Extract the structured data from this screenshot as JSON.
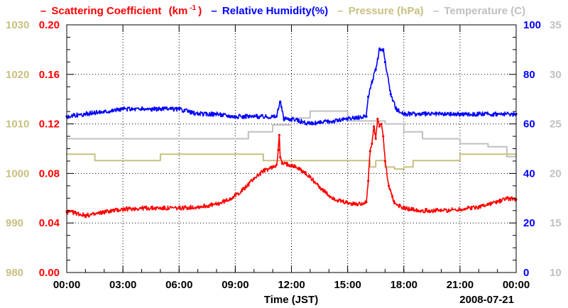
{
  "chart_data": {
    "type": "line",
    "legend": [
      {
        "name": "Scattering Coefficient",
        "unit_pre": "(km",
        "unit_sup": "-1",
        "unit_post": ")",
        "color": "#ff0000"
      },
      {
        "name": "Relative Humidity(%)",
        "color": "#0000ff"
      },
      {
        "name": "Pressure (hPa)",
        "color": "#c8c080"
      },
      {
        "name": "Temperature (C)",
        "color": "#c0c0c0"
      }
    ],
    "xlabel": "Time (JST)",
    "date_label": "2008-07-21",
    "x_range_hours": [
      0,
      24
    ],
    "x_ticks": [
      "00:00",
      "03:00",
      "06:00",
      "09:00",
      "12:00",
      "15:00",
      "18:00",
      "21:00",
      "00:00"
    ],
    "axes": {
      "scattering": {
        "range": [
          0.0,
          0.2
        ],
        "ticks": [
          "0.00",
          "0.04",
          "0.08",
          "0.12",
          "0.16",
          "0.20"
        ],
        "color": "#ff0000"
      },
      "pressure": {
        "range": [
          980,
          1030
        ],
        "ticks": [
          "980",
          "990",
          "1000",
          "1010",
          "1020",
          "1030"
        ],
        "color": "#c8c080"
      },
      "humidity": {
        "range": [
          0,
          100
        ],
        "ticks": [
          "0",
          "20",
          "40",
          "60",
          "80",
          "100"
        ],
        "color": "#0000ff"
      },
      "temperature": {
        "range": [
          10,
          35
        ],
        "ticks": [
          "10",
          "15",
          "20",
          "25",
          "30",
          "35"
        ],
        "color": "#c0c0c0"
      }
    },
    "series": [
      {
        "name": "Scattering Coefficient",
        "axis": "scattering",
        "x": [
          0,
          0.5,
          1,
          1.5,
          2,
          3,
          4,
          5,
          6,
          7,
          8,
          8.5,
          9,
          9.5,
          10,
          10.5,
          11,
          11.2,
          11.3,
          11.35,
          11.4,
          11.5,
          12,
          12.5,
          13,
          13.5,
          14,
          14.5,
          15,
          15.5,
          16,
          16.1,
          16.2,
          16.3,
          16.4,
          16.5,
          16.6,
          16.7,
          16.8,
          16.9,
          17,
          17.2,
          17.5,
          18,
          18.5,
          19,
          20,
          21,
          22,
          23,
          23.5,
          24
        ],
        "values": [
          0.049,
          0.048,
          0.046,
          0.047,
          0.049,
          0.051,
          0.052,
          0.052,
          0.052,
          0.053,
          0.055,
          0.058,
          0.062,
          0.068,
          0.076,
          0.082,
          0.085,
          0.087,
          0.099,
          0.111,
          0.093,
          0.088,
          0.087,
          0.083,
          0.077,
          0.069,
          0.062,
          0.058,
          0.056,
          0.055,
          0.057,
          0.074,
          0.098,
          0.104,
          0.118,
          0.108,
          0.124,
          0.118,
          0.12,
          0.11,
          0.09,
          0.07,
          0.056,
          0.052,
          0.051,
          0.05,
          0.05,
          0.051,
          0.053,
          0.057,
          0.06,
          0.059
        ]
      },
      {
        "name": "Relative Humidity",
        "axis": "humidity",
        "x": [
          0,
          1,
          2,
          3,
          4,
          5,
          6,
          6.5,
          7,
          8,
          9,
          10,
          11,
          11.2,
          11.4,
          11.6,
          12,
          13,
          14,
          15,
          16,
          16.1,
          16.3,
          16.5,
          16.7,
          16.9,
          17,
          17.3,
          17.6,
          18,
          19,
          20,
          21,
          22,
          23,
          24
        ],
        "values": [
          63,
          64,
          65,
          66,
          66,
          66,
          66,
          65,
          64,
          64,
          63,
          63,
          63,
          63,
          69,
          62,
          62,
          60,
          61,
          62,
          63,
          71,
          77,
          82,
          90,
          90,
          85,
          72,
          66,
          64,
          64,
          64,
          64,
          64,
          64,
          64
        ]
      },
      {
        "name": "Pressure",
        "axis": "pressure",
        "x": [
          0,
          1.5,
          1.5,
          5,
          5,
          9.7,
          9.7,
          10.5,
          10.5,
          16.2,
          16.2,
          16.5,
          16.5,
          17,
          17,
          17.5,
          17.5,
          18,
          18,
          18.5,
          18.5,
          19.5,
          19.5,
          21,
          21,
          24
        ],
        "values": [
          1003.9,
          1003.9,
          1002.6,
          1002.6,
          1003.9,
          1003.9,
          1003.9,
          1003.9,
          1002.6,
          1002.6,
          1001.3,
          1001.3,
          1002.6,
          1002.6,
          1001.3,
          1001.3,
          1000.9,
          1000.9,
          1001.3,
          1001.3,
          1002.6,
          1002.6,
          1002.6,
          1002.6,
          1003.9,
          1003.9
        ]
      },
      {
        "name": "Temperature",
        "axis": "temperature",
        "x": [
          0,
          9.7,
          9.7,
          11,
          11,
          12,
          12,
          13,
          13,
          15,
          15,
          17,
          17,
          18,
          18,
          19,
          19,
          21,
          21,
          22.5,
          22.5,
          23.5,
          23.5,
          24
        ],
        "values": [
          23.5,
          23.5,
          24.2,
          24.2,
          24.9,
          24.9,
          25.6,
          25.6,
          26.3,
          26.3,
          25.3,
          25.3,
          25,
          25,
          24.2,
          24.2,
          23.5,
          23.5,
          23,
          23,
          22.7,
          22.7,
          21.7,
          21.7
        ]
      }
    ]
  }
}
